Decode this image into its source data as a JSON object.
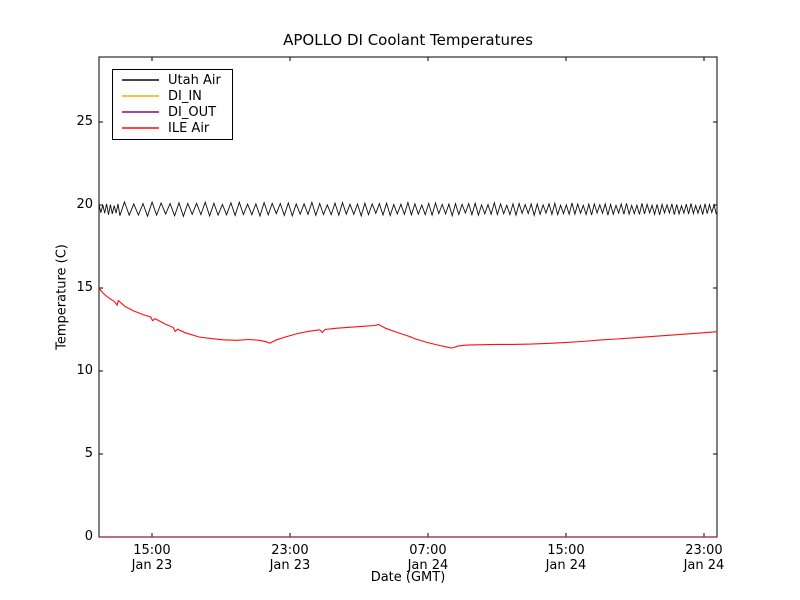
{
  "chart_data": {
    "type": "line",
    "title": "APOLLO DI Coolant Temperatures",
    "xlabel": "Date (GMT)",
    "ylabel": "Temperature (C)",
    "grid": false,
    "background": "#ffffff",
    "x_axis": {
      "unit": "hours",
      "range": [
        0,
        35.83
      ],
      "ticks": [
        {
          "t": 3.07,
          "time": "15:00",
          "date": "Jan 23"
        },
        {
          "t": 11.07,
          "time": "23:00",
          "date": "Jan 23"
        },
        {
          "t": 19.07,
          "time": "07:00",
          "date": "Jan 24"
        },
        {
          "t": 27.07,
          "time": "15:00",
          "date": "Jan 24"
        },
        {
          "t": 35.07,
          "time": "23:00",
          "date": "Jan 24"
        }
      ]
    },
    "y_axis": {
      "range": [
        0,
        28.9
      ],
      "ticks": [
        0,
        5,
        10,
        15,
        20,
        25
      ]
    },
    "legend": {
      "position": "upper left",
      "entries": [
        "Utah Air",
        "DI_IN",
        "DI_OUT",
        "ILE Air"
      ]
    },
    "series": [
      {
        "name": "Utah Air",
        "color": "#000000",
        "style": "oscillation",
        "osc": {
          "t_start": 0,
          "t_end": 35.83,
          "mean": 19.75,
          "amp_start": 0.38,
          "amp_end": 0.27,
          "period_start_h": 0.55,
          "period_end_h": 0.26,
          "intro": {
            "t_end": 1.2,
            "period_h": 0.22,
            "amp": 0.28
          }
        }
      },
      {
        "name": "DI_IN",
        "color": "#ffa500",
        "style": "constant",
        "value": 0
      },
      {
        "name": "DI_OUT",
        "color": "#800080",
        "style": "constant",
        "value": 0
      },
      {
        "name": "ILE Air",
        "color": "#ff0000",
        "style": "points",
        "points": [
          [
            0,
            15.0
          ],
          [
            0.2,
            14.72
          ],
          [
            0.5,
            14.45
          ],
          [
            0.9,
            14.18
          ],
          [
            1.05,
            13.97
          ],
          [
            1.12,
            14.24
          ],
          [
            1.5,
            13.9
          ],
          [
            2.0,
            13.62
          ],
          [
            2.6,
            13.38
          ],
          [
            3.0,
            13.25
          ],
          [
            3.1,
            13.03
          ],
          [
            3.25,
            13.15
          ],
          [
            3.8,
            12.85
          ],
          [
            4.3,
            12.62
          ],
          [
            4.42,
            12.38
          ],
          [
            4.55,
            12.52
          ],
          [
            5.0,
            12.3
          ],
          [
            5.8,
            12.05
          ],
          [
            6.5,
            11.95
          ],
          [
            7.2,
            11.88
          ],
          [
            8.0,
            11.85
          ],
          [
            8.7,
            11.9
          ],
          [
            9.3,
            11.85
          ],
          [
            9.7,
            11.76
          ],
          [
            9.9,
            11.68
          ],
          [
            10.3,
            11.88
          ],
          [
            10.8,
            12.05
          ],
          [
            11.5,
            12.25
          ],
          [
            12.2,
            12.4
          ],
          [
            12.8,
            12.48
          ],
          [
            12.95,
            12.32
          ],
          [
            13.1,
            12.5
          ],
          [
            13.8,
            12.58
          ],
          [
            14.6,
            12.64
          ],
          [
            15.4,
            12.7
          ],
          [
            16.0,
            12.74
          ],
          [
            16.2,
            12.8
          ],
          [
            16.6,
            12.58
          ],
          [
            17.3,
            12.32
          ],
          [
            18.0,
            12.08
          ],
          [
            18.35,
            11.93
          ],
          [
            19.0,
            11.72
          ],
          [
            19.9,
            11.5
          ],
          [
            20.45,
            11.38
          ],
          [
            20.8,
            11.5
          ],
          [
            21.3,
            11.56
          ],
          [
            22.0,
            11.58
          ],
          [
            23.0,
            11.6
          ],
          [
            24.0,
            11.6
          ],
          [
            25.0,
            11.62
          ],
          [
            26.0,
            11.66
          ],
          [
            27.0,
            11.71
          ],
          [
            28.0,
            11.78
          ],
          [
            29.0,
            11.86
          ],
          [
            30.0,
            11.93
          ],
          [
            31.0,
            12.0
          ],
          [
            32.0,
            12.07
          ],
          [
            33.0,
            12.15
          ],
          [
            34.0,
            12.22
          ],
          [
            35.0,
            12.3
          ],
          [
            35.83,
            12.37
          ]
        ]
      }
    ]
  }
}
